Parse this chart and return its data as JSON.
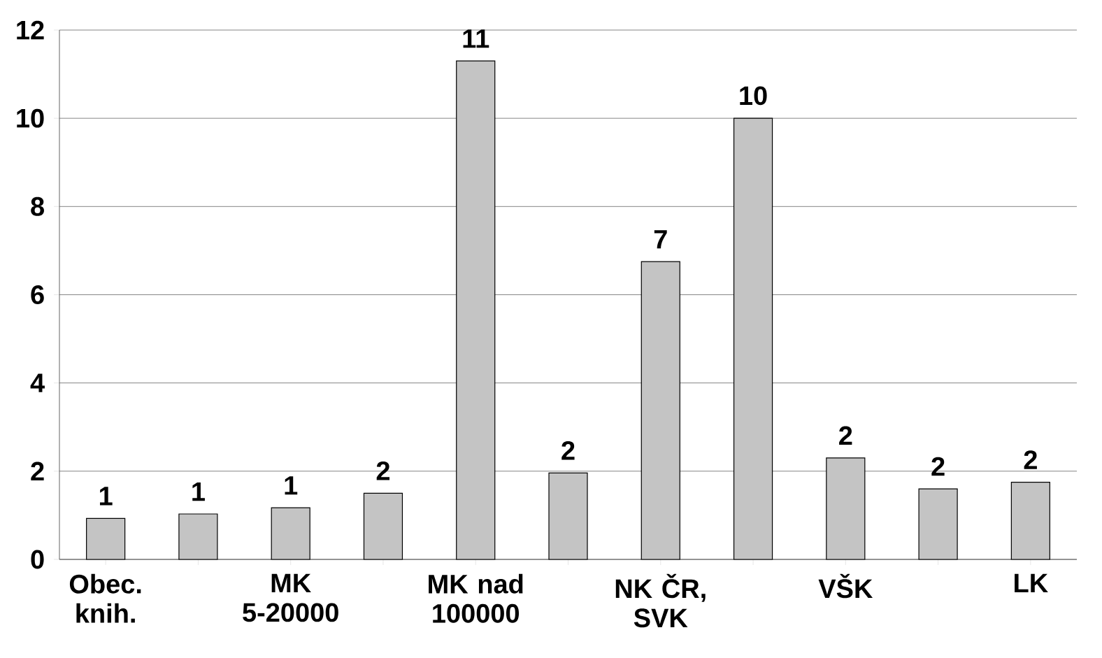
{
  "chart_data": {
    "type": "bar",
    "categories": [
      "Obec. knih.",
      null,
      "MK 5-20000",
      null,
      "MK nad 100000",
      null,
      "NK ČR, SVK",
      null,
      "VŠK",
      null,
      "LK"
    ],
    "values": [
      0.93,
      1.03,
      1.17,
      1.5,
      11.3,
      1.96,
      6.75,
      10.0,
      2.3,
      1.6,
      1.75
    ],
    "value_labels": [
      "1",
      "1",
      "1",
      "2",
      "11",
      "2",
      "7",
      "10",
      "2",
      "2",
      "2"
    ],
    "color": "#c4c4c4",
    "ylim": [
      0,
      12
    ],
    "yticks": [
      0,
      2,
      4,
      6,
      8,
      10,
      12
    ],
    "grid": "y"
  }
}
